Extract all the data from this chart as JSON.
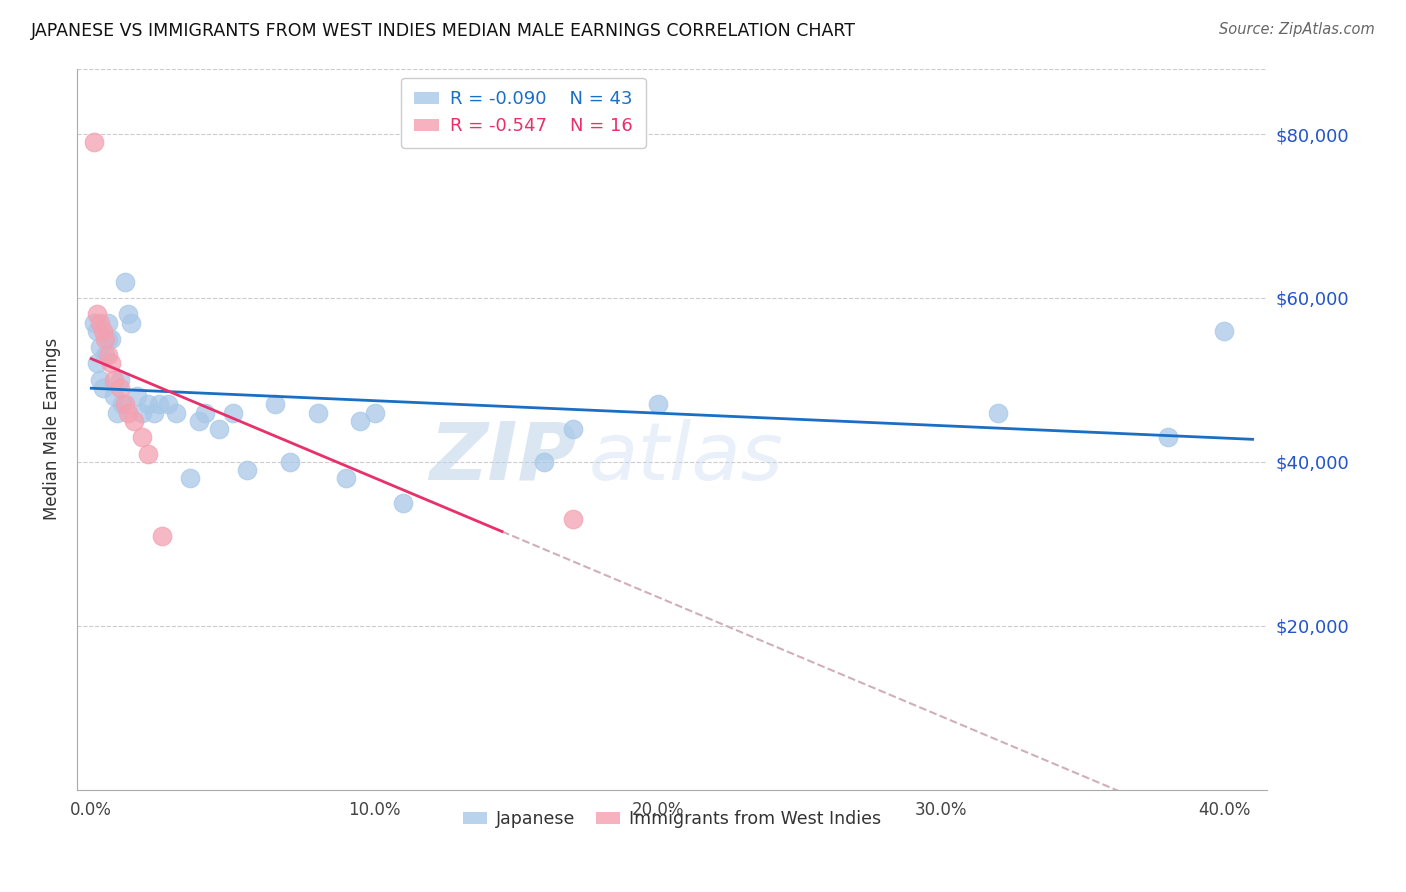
{
  "title": "JAPANESE VS IMMIGRANTS FROM WEST INDIES MEDIAN MALE EARNINGS CORRELATION CHART",
  "source": "Source: ZipAtlas.com",
  "ylabel": "Median Male Earnings",
  "xlabel_ticks": [
    "0.0%",
    "10.0%",
    "20.0%",
    "30.0%",
    "40.0%"
  ],
  "xlabel_tick_vals": [
    0.0,
    0.1,
    0.2,
    0.3,
    0.4
  ],
  "ytick_labels": [
    "$20,000",
    "$40,000",
    "$60,000",
    "$80,000"
  ],
  "ytick_vals": [
    20000,
    40000,
    60000,
    80000
  ],
  "ylim": [
    0,
    88000
  ],
  "xlim": [
    -0.005,
    0.415
  ],
  "legend_r1": "R = -0.090",
  "legend_n1": "N = 43",
  "legend_r2": "R = -0.547",
  "legend_n2": "N = 16",
  "blue_color": "#a8c8e8",
  "pink_color": "#f4a0b0",
  "line_blue": "#1a6fc4",
  "line_pink": "#e8306a",
  "line_dashed_color": "#d0b0b8",
  "watermark_zip": "ZIP",
  "watermark_atlas": "atlas",
  "japanese_x": [
    0.001,
    0.002,
    0.002,
    0.003,
    0.003,
    0.004,
    0.005,
    0.006,
    0.006,
    0.007,
    0.008,
    0.009,
    0.01,
    0.011,
    0.012,
    0.013,
    0.014,
    0.016,
    0.018,
    0.02,
    0.022,
    0.024,
    0.027,
    0.03,
    0.035,
    0.038,
    0.04,
    0.045,
    0.05,
    0.055,
    0.065,
    0.07,
    0.08,
    0.09,
    0.095,
    0.1,
    0.11,
    0.16,
    0.17,
    0.2,
    0.32,
    0.38,
    0.4
  ],
  "japanese_y": [
    57000,
    56000,
    52000,
    54000,
    50000,
    49000,
    53000,
    57000,
    55000,
    55000,
    48000,
    46000,
    50000,
    47000,
    62000,
    58000,
    57000,
    48000,
    46000,
    47000,
    46000,
    47000,
    47000,
    46000,
    38000,
    45000,
    46000,
    44000,
    46000,
    39000,
    47000,
    40000,
    46000,
    38000,
    45000,
    46000,
    35000,
    40000,
    44000,
    47000,
    46000,
    43000,
    56000
  ],
  "westindies_x": [
    0.001,
    0.002,
    0.003,
    0.004,
    0.005,
    0.006,
    0.007,
    0.008,
    0.01,
    0.012,
    0.013,
    0.015,
    0.018,
    0.02,
    0.025,
    0.17
  ],
  "westindies_y": [
    79000,
    58000,
    57000,
    56000,
    55000,
    53000,
    52000,
    50000,
    49000,
    47000,
    46000,
    45000,
    43000,
    41000,
    31000,
    33000
  ],
  "blue_line_x": [
    0.0,
    0.41
  ],
  "blue_line_y": [
    50500,
    46000
  ],
  "pink_line_x": [
    0.0,
    0.145
  ],
  "pink_line_y": [
    52000,
    25000
  ],
  "dashed_line_x": [
    0.145,
    0.41
  ],
  "dashed_line_y": [
    25000,
    -26000
  ]
}
